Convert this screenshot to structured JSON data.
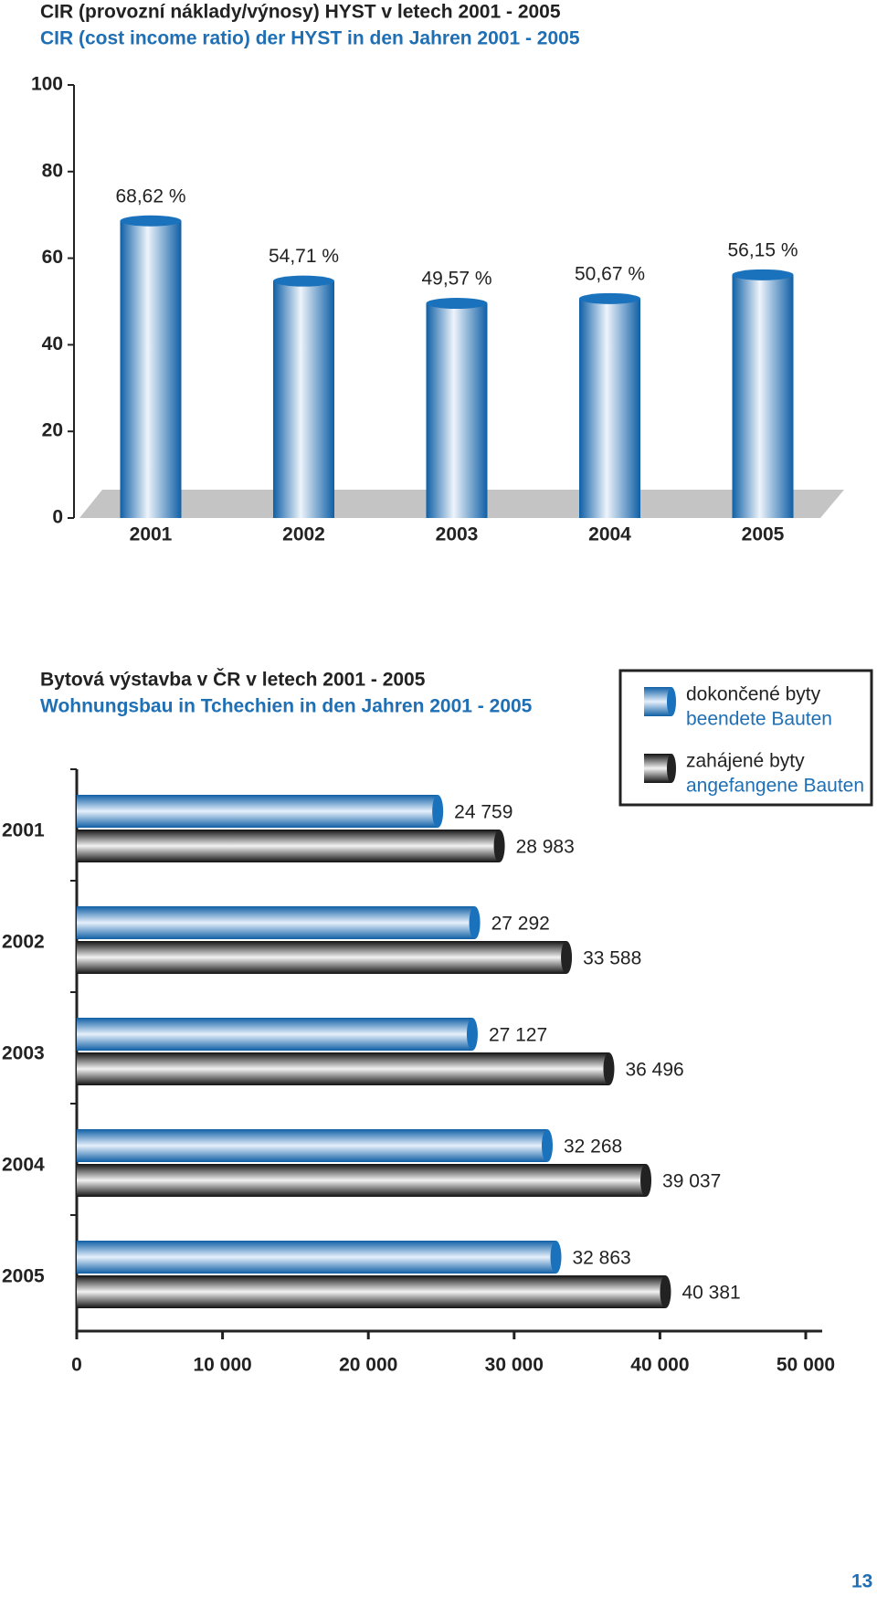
{
  "chart_data": [
    {
      "type": "bar",
      "title": "CIR (provozní náklady/výnosy) HYST v letech 2001 - 2005",
      "subtitle": "CIR (cost income ratio) der HYST in den Jahren 2001 - 2005",
      "categories": [
        "2001",
        "2002",
        "2003",
        "2004",
        "2005"
      ],
      "values": [
        68.62,
        54.71,
        49.57,
        50.67,
        56.15
      ],
      "value_labels": [
        "68,62 %",
        "54,71 %",
        "49,57 %",
        "50,67 %",
        "56,15 %"
      ],
      "color": "#1a72bd",
      "ylim": [
        0,
        100
      ],
      "yticks": [
        0,
        20,
        40,
        60,
        80,
        100
      ]
    },
    {
      "type": "hbar",
      "title": "Bytová výstavba v ČR v letech 2001 - 2005",
      "subtitle": "Wohnungsbau in Tchechien in den Jahren 2001 - 2005",
      "categories": [
        "2001",
        "2002",
        "2003",
        "2004",
        "2005"
      ],
      "series": [
        {
          "name": "dokončené byty",
          "name_de": "beendete Bauten",
          "color": "#1a72bd",
          "values": [
            24759,
            27292,
            27127,
            32268,
            32863
          ],
          "value_labels": [
            "24 759",
            "27 292",
            "27 127",
            "32 268",
            "32 863"
          ]
        },
        {
          "name": "zahájené byty",
          "name_de": "angefangene Bauten",
          "color": "#222222",
          "values": [
            28983,
            33588,
            36496,
            39037,
            40381
          ],
          "value_labels": [
            "28 983",
            "33 588",
            "36 496",
            "39 037",
            "40 381"
          ]
        }
      ],
      "xlim": [
        0,
        50000
      ],
      "xticks": [
        0,
        {
          "value": 10000,
          "label": "10 000"
        },
        {
          "value": 20000,
          "label": "20 000"
        },
        {
          "value": 30000,
          "label": "30 000"
        },
        {
          "value": 40000,
          "label": "40 000"
        },
        {
          "value": 50000,
          "label": "50 000"
        }
      ]
    }
  ],
  "page_number": "13"
}
